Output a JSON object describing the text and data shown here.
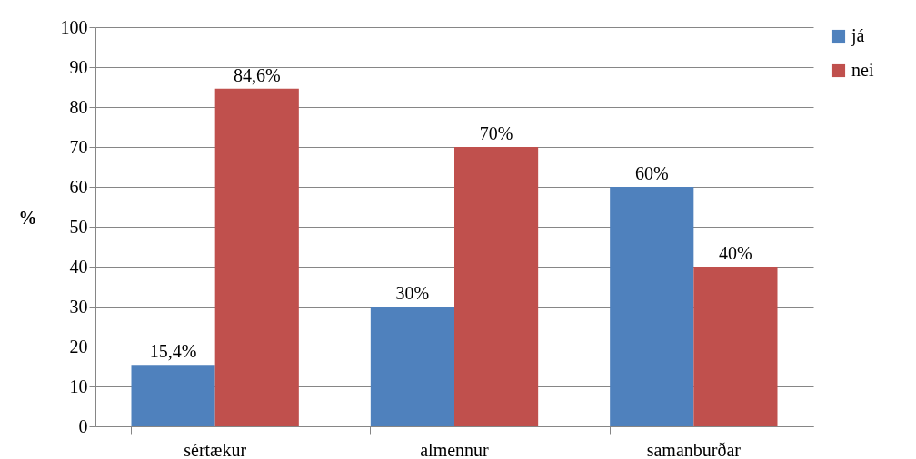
{
  "chart_data": {
    "type": "bar",
    "ylabel": "%",
    "categories": [
      "sértækur",
      "almennur",
      "samanburðar"
    ],
    "series": [
      {
        "name": "já",
        "color": "#4f81bd",
        "values": [
          15.4,
          30,
          60
        ],
        "value_labels": [
          "15,4%",
          "30%",
          "60%"
        ]
      },
      {
        "name": "nei",
        "color": "#c0504d",
        "values": [
          84.6,
          70,
          40
        ],
        "value_labels": [
          "84,6%",
          "70%",
          "40%"
        ]
      }
    ],
    "ylim": [
      0,
      100
    ],
    "yticks": [
      0,
      10,
      20,
      30,
      40,
      50,
      60,
      70,
      80,
      90,
      100
    ],
    "grid": "y",
    "legend": "right"
  }
}
